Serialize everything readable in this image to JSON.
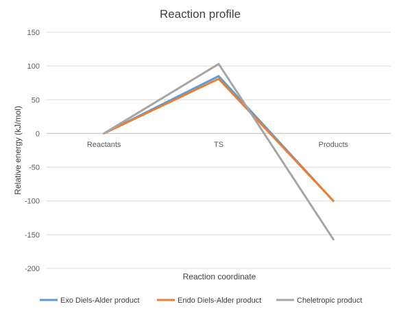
{
  "chart_data": {
    "type": "line",
    "title": "Reaction profile",
    "xlabel": "Reaction coordinate",
    "ylabel": "Relative energy (kJ/mol)",
    "categories": [
      "Reactants",
      "TS",
      "Products"
    ],
    "ylim": [
      -200,
      150
    ],
    "yticks": [
      150,
      100,
      50,
      0,
      -50,
      -100,
      -150,
      -200
    ],
    "grid": true,
    "legend": "bottom",
    "series": [
      {
        "name": "Exo Diels-Alder product",
        "values": [
          0,
          85,
          -100
        ],
        "color": "#5B9BD5"
      },
      {
        "name": "Endo Diels-Alder product",
        "values": [
          0,
          81,
          -100
        ],
        "color": "#ED7D31"
      },
      {
        "name": "Cheletropic product",
        "values": [
          0,
          103,
          -157
        ],
        "color": "#A5A5A5"
      }
    ]
  }
}
